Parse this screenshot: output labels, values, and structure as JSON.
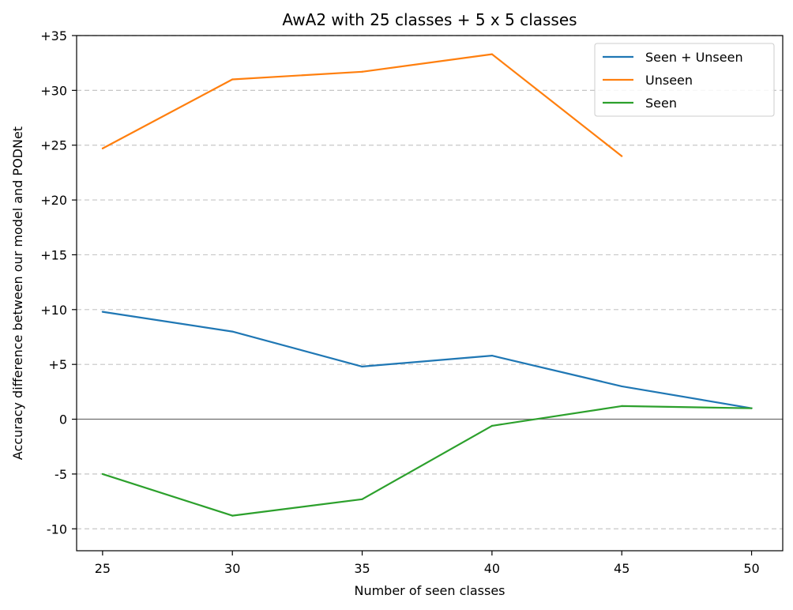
{
  "chart_data": {
    "type": "line",
    "title": "AwA2 with 25 classes + 5 x 5 classes",
    "xlabel": "Number of seen classes",
    "ylabel": "Accuracy difference between our model and PODNet",
    "xlim": [
      24,
      51.2
    ],
    "ylim": [
      -12,
      35
    ],
    "xticks": [
      25,
      30,
      35,
      40,
      45,
      50
    ],
    "yticks": [
      {
        "value": 35,
        "label": "+35"
      },
      {
        "value": 30,
        "label": "+30"
      },
      {
        "value": 25,
        "label": "+25"
      },
      {
        "value": 20,
        "label": "+20"
      },
      {
        "value": 15,
        "label": "+15"
      },
      {
        "value": 10,
        "label": "+10"
      },
      {
        "value": 5,
        "label": "+5"
      },
      {
        "value": 0,
        "label": "0"
      },
      {
        "value": -5,
        "label": "-5"
      },
      {
        "value": -10,
        "label": "-10"
      }
    ],
    "grid": "horizontal-dashed",
    "zero_line": true,
    "legend_position": "top-right",
    "series": [
      {
        "name": "Seen + Unseen",
        "color": "#1f77b4",
        "points": [
          [
            25,
            9.8
          ],
          [
            30,
            8.0
          ],
          [
            35,
            4.8
          ],
          [
            40,
            5.8
          ],
          [
            45,
            3.0
          ],
          [
            50,
            1.0
          ]
        ]
      },
      {
        "name": "Unseen",
        "color": "#ff7f0e",
        "points": [
          [
            25,
            24.7
          ],
          [
            30,
            31.0
          ],
          [
            35,
            31.7
          ],
          [
            40,
            33.3
          ],
          [
            45,
            24.0
          ]
        ]
      },
      {
        "name": "Seen",
        "color": "#2ca02c",
        "points": [
          [
            25,
            -5.0
          ],
          [
            30,
            -8.8
          ],
          [
            35,
            -7.3
          ],
          [
            40,
            -0.6
          ],
          [
            45,
            1.2
          ],
          [
            50,
            1.0
          ]
        ]
      }
    ]
  }
}
